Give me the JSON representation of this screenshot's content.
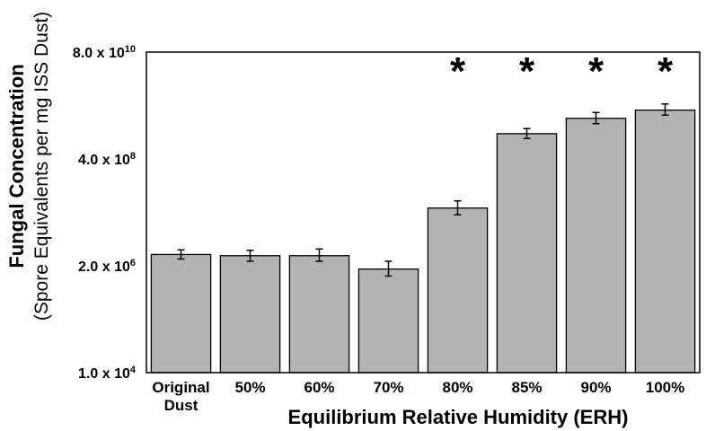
{
  "chart_data": {
    "type": "bar",
    "ylabel": "Fungal Concentration",
    "ylabel_sub": "(Spore Equivalents per mg ISS Dust)",
    "xlabel": "Equilibrium Relative Humidity (ERH)",
    "y_scale": "log",
    "ylim": [
      10000,
      80000000000
    ],
    "y_ticks": [
      {
        "value": 10000,
        "mantissa": "1.0 x 10",
        "exp": "4"
      },
      {
        "value": 2000000,
        "mantissa": "2.0 x 10",
        "exp": "6"
      },
      {
        "value": 400000000,
        "mantissa": "4.0 x 10",
        "exp": "8"
      },
      {
        "value": 80000000000,
        "mantissa": "8.0 x 10",
        "exp": "10"
      }
    ],
    "categories": [
      [
        "Original",
        "Dust"
      ],
      [
        "50%"
      ],
      [
        "60%"
      ],
      [
        "70%"
      ],
      [
        "80%"
      ],
      [
        "85%"
      ],
      [
        "90%"
      ],
      [
        "100%"
      ]
    ],
    "values": [
      3500000,
      3300000,
      3300000,
      1700000,
      35000000,
      1400000000,
      3000000000,
      4500000000
    ],
    "error_low": [
      2800000,
      2500000,
      2500000,
      1200000,
      25000000,
      1100000000,
      2300000000,
      3500000000
    ],
    "error_high": [
      4400000,
      4300000,
      4600000,
      2500000,
      50000000,
      1800000000,
      4000000000,
      6100000000
    ],
    "significant": [
      false,
      false,
      false,
      false,
      true,
      true,
      true,
      true
    ],
    "significance_marker": "*",
    "bar_color": "#b3b3b3",
    "grid": false
  }
}
